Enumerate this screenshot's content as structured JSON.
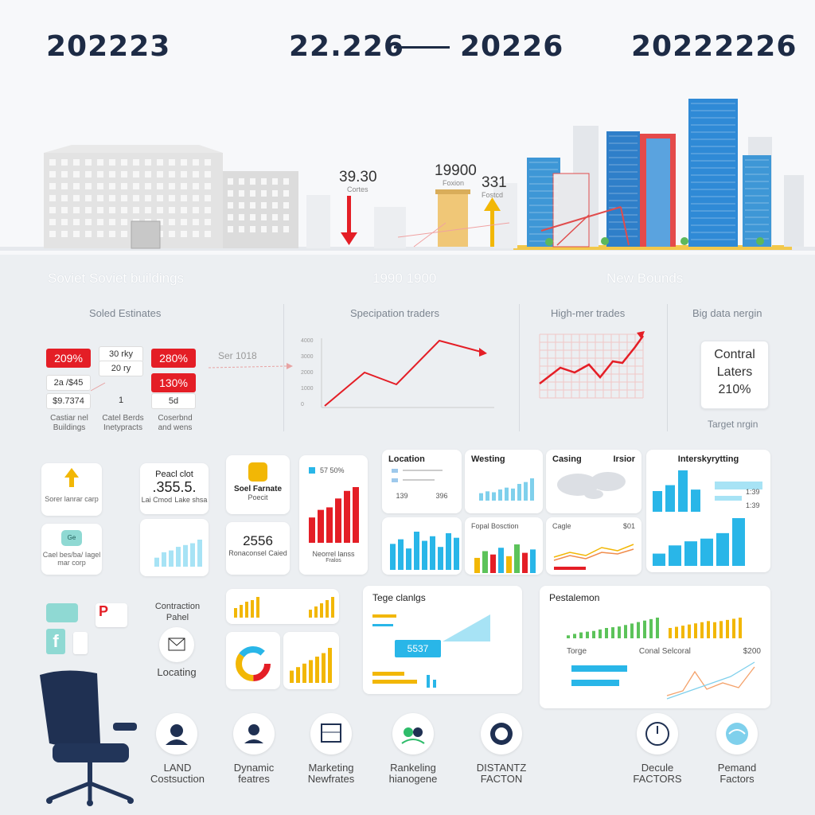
{
  "header": {
    "year_left": "202223",
    "year_mid_a": "22.226",
    "year_mid_b": "20226",
    "year_right": "20222226"
  },
  "skyline": {
    "value_down": "39.30",
    "value_down_sub": "Cortes",
    "value_mid": "19900",
    "value_mid_sub": "Foxion",
    "value_up": "331",
    "value_up_sub": "Fostcd"
  },
  "section_labels": {
    "left": "Soviet Soviet buildings",
    "mid": "1990 1900",
    "right": "New Bounds"
  },
  "analysis": {
    "col1_title": "Soled Estinates",
    "col2_title": "Specipation traders",
    "col3_title": "High-mer trades",
    "col4_title": "Big data nergin",
    "badges": {
      "b1": "209%",
      "b2": "30 rky",
      "b3": "20 ry",
      "b4": "280%",
      "b5": "2a /$45",
      "b6": "130%",
      "b7": "$9.7374",
      "b8": "1",
      "b9": "5d",
      "arrow_text": "Ser 1018"
    },
    "captions": {
      "c1": "Castiar nel Buildings",
      "c2": "Catel Berds Inetypracts",
      "c3": "Coserbnd and wens"
    },
    "big_data_box": {
      "line1": "Contral",
      "line2": "Laters",
      "line3": "210%"
    },
    "big_data_caption": "Target nrgin",
    "line_chart_y": [
      "4000",
      "3000",
      "2000",
      "1000",
      "0"
    ]
  },
  "cards": {
    "up_card_text": "Sorer lanrar carp",
    "prod_title": "Peacl clot",
    "prod_value": ".355.5.",
    "prod_sub_a": "Lai Cmod",
    "prod_sub_b": "Lake shsa",
    "soel_title": "Soel Farnate",
    "soel_sub": "Poecit",
    "bar_card_badge": "57 50%",
    "bar_card_caption": "Neorrel lanss",
    "bar_card_sub": "Fralos",
    "ge_card_text": "Cael bes/ba/ Iagel mar corp",
    "num_card_value": "2556",
    "num_card_sub": "Ronaconsel Caied",
    "location_title": "Location",
    "location_vals": [
      "139",
      "396"
    ],
    "westing_title": "Westing",
    "casing_title": "Casing",
    "irsior_title": "Irsior",
    "interest_title": "Interskyrytting",
    "interest_vals": [
      "1:39",
      "1:39"
    ],
    "fopal_title": "Fopal Bosction",
    "cagle_title": "Cagle",
    "cagle_val": "$01",
    "tege_title": "Tege clanlgs",
    "tege_value": "5537",
    "pectalemon_title": "Pestalemon",
    "torge_title": "Torge",
    "coral_title": "Conal Selcoral",
    "coral_val": "$200"
  },
  "contraction": {
    "label": "Contraction Pahel",
    "locating": "Locating"
  },
  "bottom_icons": [
    {
      "l1": "LAND",
      "l2": "Costsuction"
    },
    {
      "l1": "Dynamic",
      "l2": "featres"
    },
    {
      "l1": "Marketing",
      "l2": "Newfrates"
    },
    {
      "l1": "Rankeling",
      "l2": "hianogene"
    },
    {
      "l1": "DISTANTZ",
      "l2": "FACTON"
    },
    {
      "l1": "Decule",
      "l2": "FACTORS"
    },
    {
      "l1": "Pemand",
      "l2": "Factors"
    }
  ],
  "colors": {
    "accent_red": "#e41e26",
    "accent_blue": "#29b6e8",
    "accent_yellow": "#f2b705",
    "navy": "#1d2b45",
    "green": "#5cc35a"
  }
}
